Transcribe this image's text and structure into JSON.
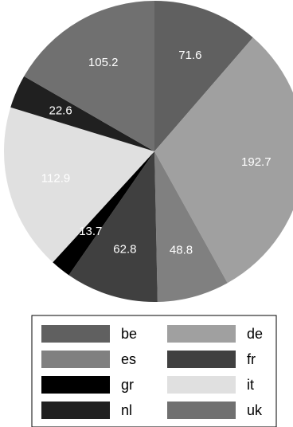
{
  "chart_data": {
    "type": "pie",
    "title": "",
    "start": "top",
    "direction": "clockwise",
    "series": [
      {
        "label": "be",
        "value": 71.6,
        "color": "#606060"
      },
      {
        "label": "de",
        "value": 192.7,
        "color": "#a0a0a0"
      },
      {
        "label": "es",
        "value": 48.8,
        "color": "#808080"
      },
      {
        "label": "fr",
        "value": 62.8,
        "color": "#404040"
      },
      {
        "label": "gr",
        "value": 13.7,
        "color": "#000000"
      },
      {
        "label": "it",
        "value": 112.9,
        "color": "#e0e0e0"
      },
      {
        "label": "nl",
        "value": 22.6,
        "color": "#202020"
      },
      {
        "label": "uk",
        "value": 105.2,
        "color": "#707070"
      }
    ],
    "legend": {
      "position": "bottom",
      "columns": 2,
      "entries": [
        "be",
        "de",
        "es",
        "fr",
        "gr",
        "it",
        "nl",
        "uk"
      ]
    }
  }
}
